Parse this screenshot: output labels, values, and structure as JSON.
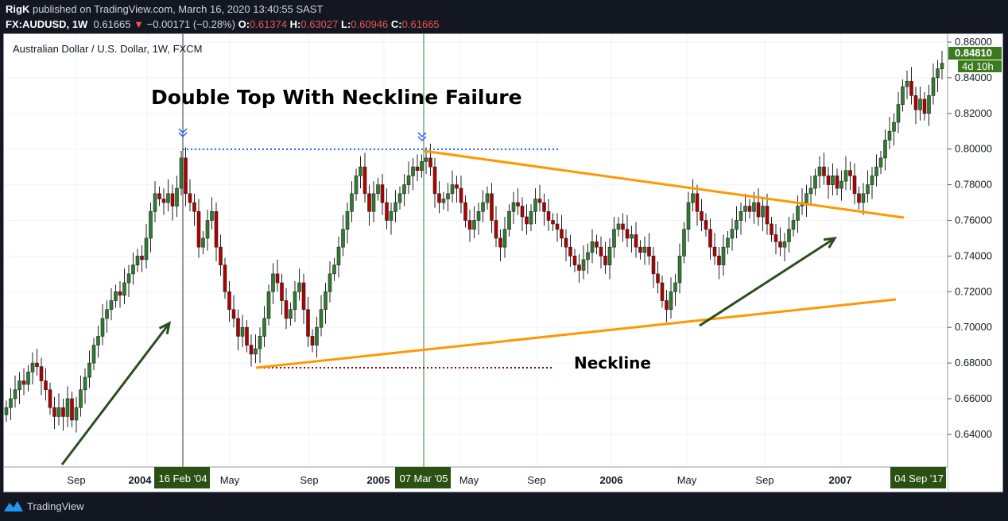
{
  "header": {
    "author": "RigK",
    "published": "published on TradingView.com, March 16, 2020 13:40:55 SAST",
    "symbol": "FX:AUDUSD, 1W",
    "last": "0.61665",
    "change": "−0.00171 (−0.28%)",
    "o_label": "O:",
    "o": "0.61374",
    "h_label": "H:",
    "h": "0.63027",
    "l_label": "L:",
    "l": "0.60946",
    "c_label": "C:",
    "c": "0.61665",
    "direction_icon": "triangle-down-icon"
  },
  "footer": {
    "brand": "TradingView"
  },
  "chart_data": {
    "type": "candlestick",
    "title": "Australian Dollar / U.S. Dollar, 1W, FXCM",
    "ylim": [
      0.63,
      0.865
    ],
    "y_ticks": [
      "0.86000",
      "0.84000",
      "0.82000",
      "0.80000",
      "0.78000",
      "0.76000",
      "0.74000",
      "0.72000",
      "0.70000",
      "0.68000",
      "0.66000",
      "0.64000"
    ],
    "x_ticks": [
      {
        "label": "Sep",
        "bold": false
      },
      {
        "label": "2004",
        "bold": true
      },
      {
        "label": "May",
        "bold": false
      },
      {
        "label": "Sep",
        "bold": false
      },
      {
        "label": "2005",
        "bold": true
      },
      {
        "label": "May",
        "bold": false
      },
      {
        "label": "Sep",
        "bold": false
      },
      {
        "label": "2006",
        "bold": true
      },
      {
        "label": "May",
        "bold": false
      },
      {
        "label": "Sep",
        "bold": false
      },
      {
        "label": "2007",
        "bold": true
      }
    ],
    "x_markers": [
      "16 Feb '04",
      "07 Mar '05",
      "04 Sep '17"
    ],
    "price_label": "0.84810",
    "countdown": "4d 10h",
    "grid": true,
    "colors": {
      "up": "#2e7d32",
      "down": "#b00000",
      "trend": "#ff9800",
      "arrow": "#2b4d1f",
      "top_line": "#2962ff",
      "low_line": "#8b0000",
      "marker_bg": "#2b5014"
    },
    "closes": [
      0.655,
      0.66,
      0.665,
      0.67,
      0.668,
      0.675,
      0.68,
      0.678,
      0.67,
      0.665,
      0.655,
      0.65,
      0.655,
      0.65,
      0.66,
      0.648,
      0.655,
      0.665,
      0.672,
      0.68,
      0.69,
      0.695,
      0.705,
      0.71,
      0.715,
      0.72,
      0.718,
      0.725,
      0.73,
      0.735,
      0.74,
      0.738,
      0.75,
      0.765,
      0.775,
      0.772,
      0.77,
      0.775,
      0.768,
      0.778,
      0.795,
      0.775,
      0.77,
      0.765,
      0.745,
      0.75,
      0.76,
      0.765,
      0.745,
      0.735,
      0.72,
      0.71,
      0.705,
      0.695,
      0.7,
      0.69,
      0.685,
      0.688,
      0.695,
      0.705,
      0.72,
      0.73,
      0.725,
      0.715,
      0.705,
      0.71,
      0.72,
      0.725,
      0.71,
      0.695,
      0.69,
      0.7,
      0.71,
      0.72,
      0.73,
      0.735,
      0.745,
      0.755,
      0.765,
      0.775,
      0.785,
      0.79,
      0.775,
      0.765,
      0.775,
      0.78,
      0.77,
      0.76,
      0.765,
      0.77,
      0.775,
      0.78,
      0.785,
      0.79,
      0.788,
      0.793,
      0.795,
      0.79,
      0.775,
      0.77,
      0.772,
      0.775,
      0.78,
      0.778,
      0.77,
      0.76,
      0.755,
      0.76,
      0.765,
      0.77,
      0.775,
      0.76,
      0.75,
      0.745,
      0.755,
      0.765,
      0.77,
      0.768,
      0.762,
      0.758,
      0.765,
      0.772,
      0.77,
      0.765,
      0.76,
      0.758,
      0.755,
      0.75,
      0.745,
      0.74,
      0.735,
      0.732,
      0.738,
      0.742,
      0.748,
      0.745,
      0.74,
      0.735,
      0.745,
      0.755,
      0.758,
      0.755,
      0.75,
      0.752,
      0.745,
      0.742,
      0.745,
      0.74,
      0.73,
      0.725,
      0.715,
      0.71,
      0.72,
      0.725,
      0.74,
      0.755,
      0.77,
      0.775,
      0.765,
      0.76,
      0.755,
      0.745,
      0.74,
      0.735,
      0.745,
      0.75,
      0.755,
      0.76,
      0.765,
      0.768,
      0.765,
      0.77,
      0.762,
      0.768,
      0.758,
      0.752,
      0.748,
      0.745,
      0.748,
      0.755,
      0.76,
      0.768,
      0.77,
      0.775,
      0.778,
      0.785,
      0.79,
      0.785,
      0.78,
      0.785,
      0.778,
      0.782,
      0.788,
      0.785,
      0.775,
      0.77,
      0.775,
      0.78,
      0.785,
      0.79,
      0.795,
      0.805,
      0.81,
      0.815,
      0.825,
      0.835,
      0.838,
      0.83,
      0.822,
      0.828,
      0.82,
      0.83,
      0.84,
      0.845,
      0.8481
    ],
    "annotations": {
      "headline": "Double Top With Neckline Failure",
      "neckline": "Neckline"
    }
  }
}
